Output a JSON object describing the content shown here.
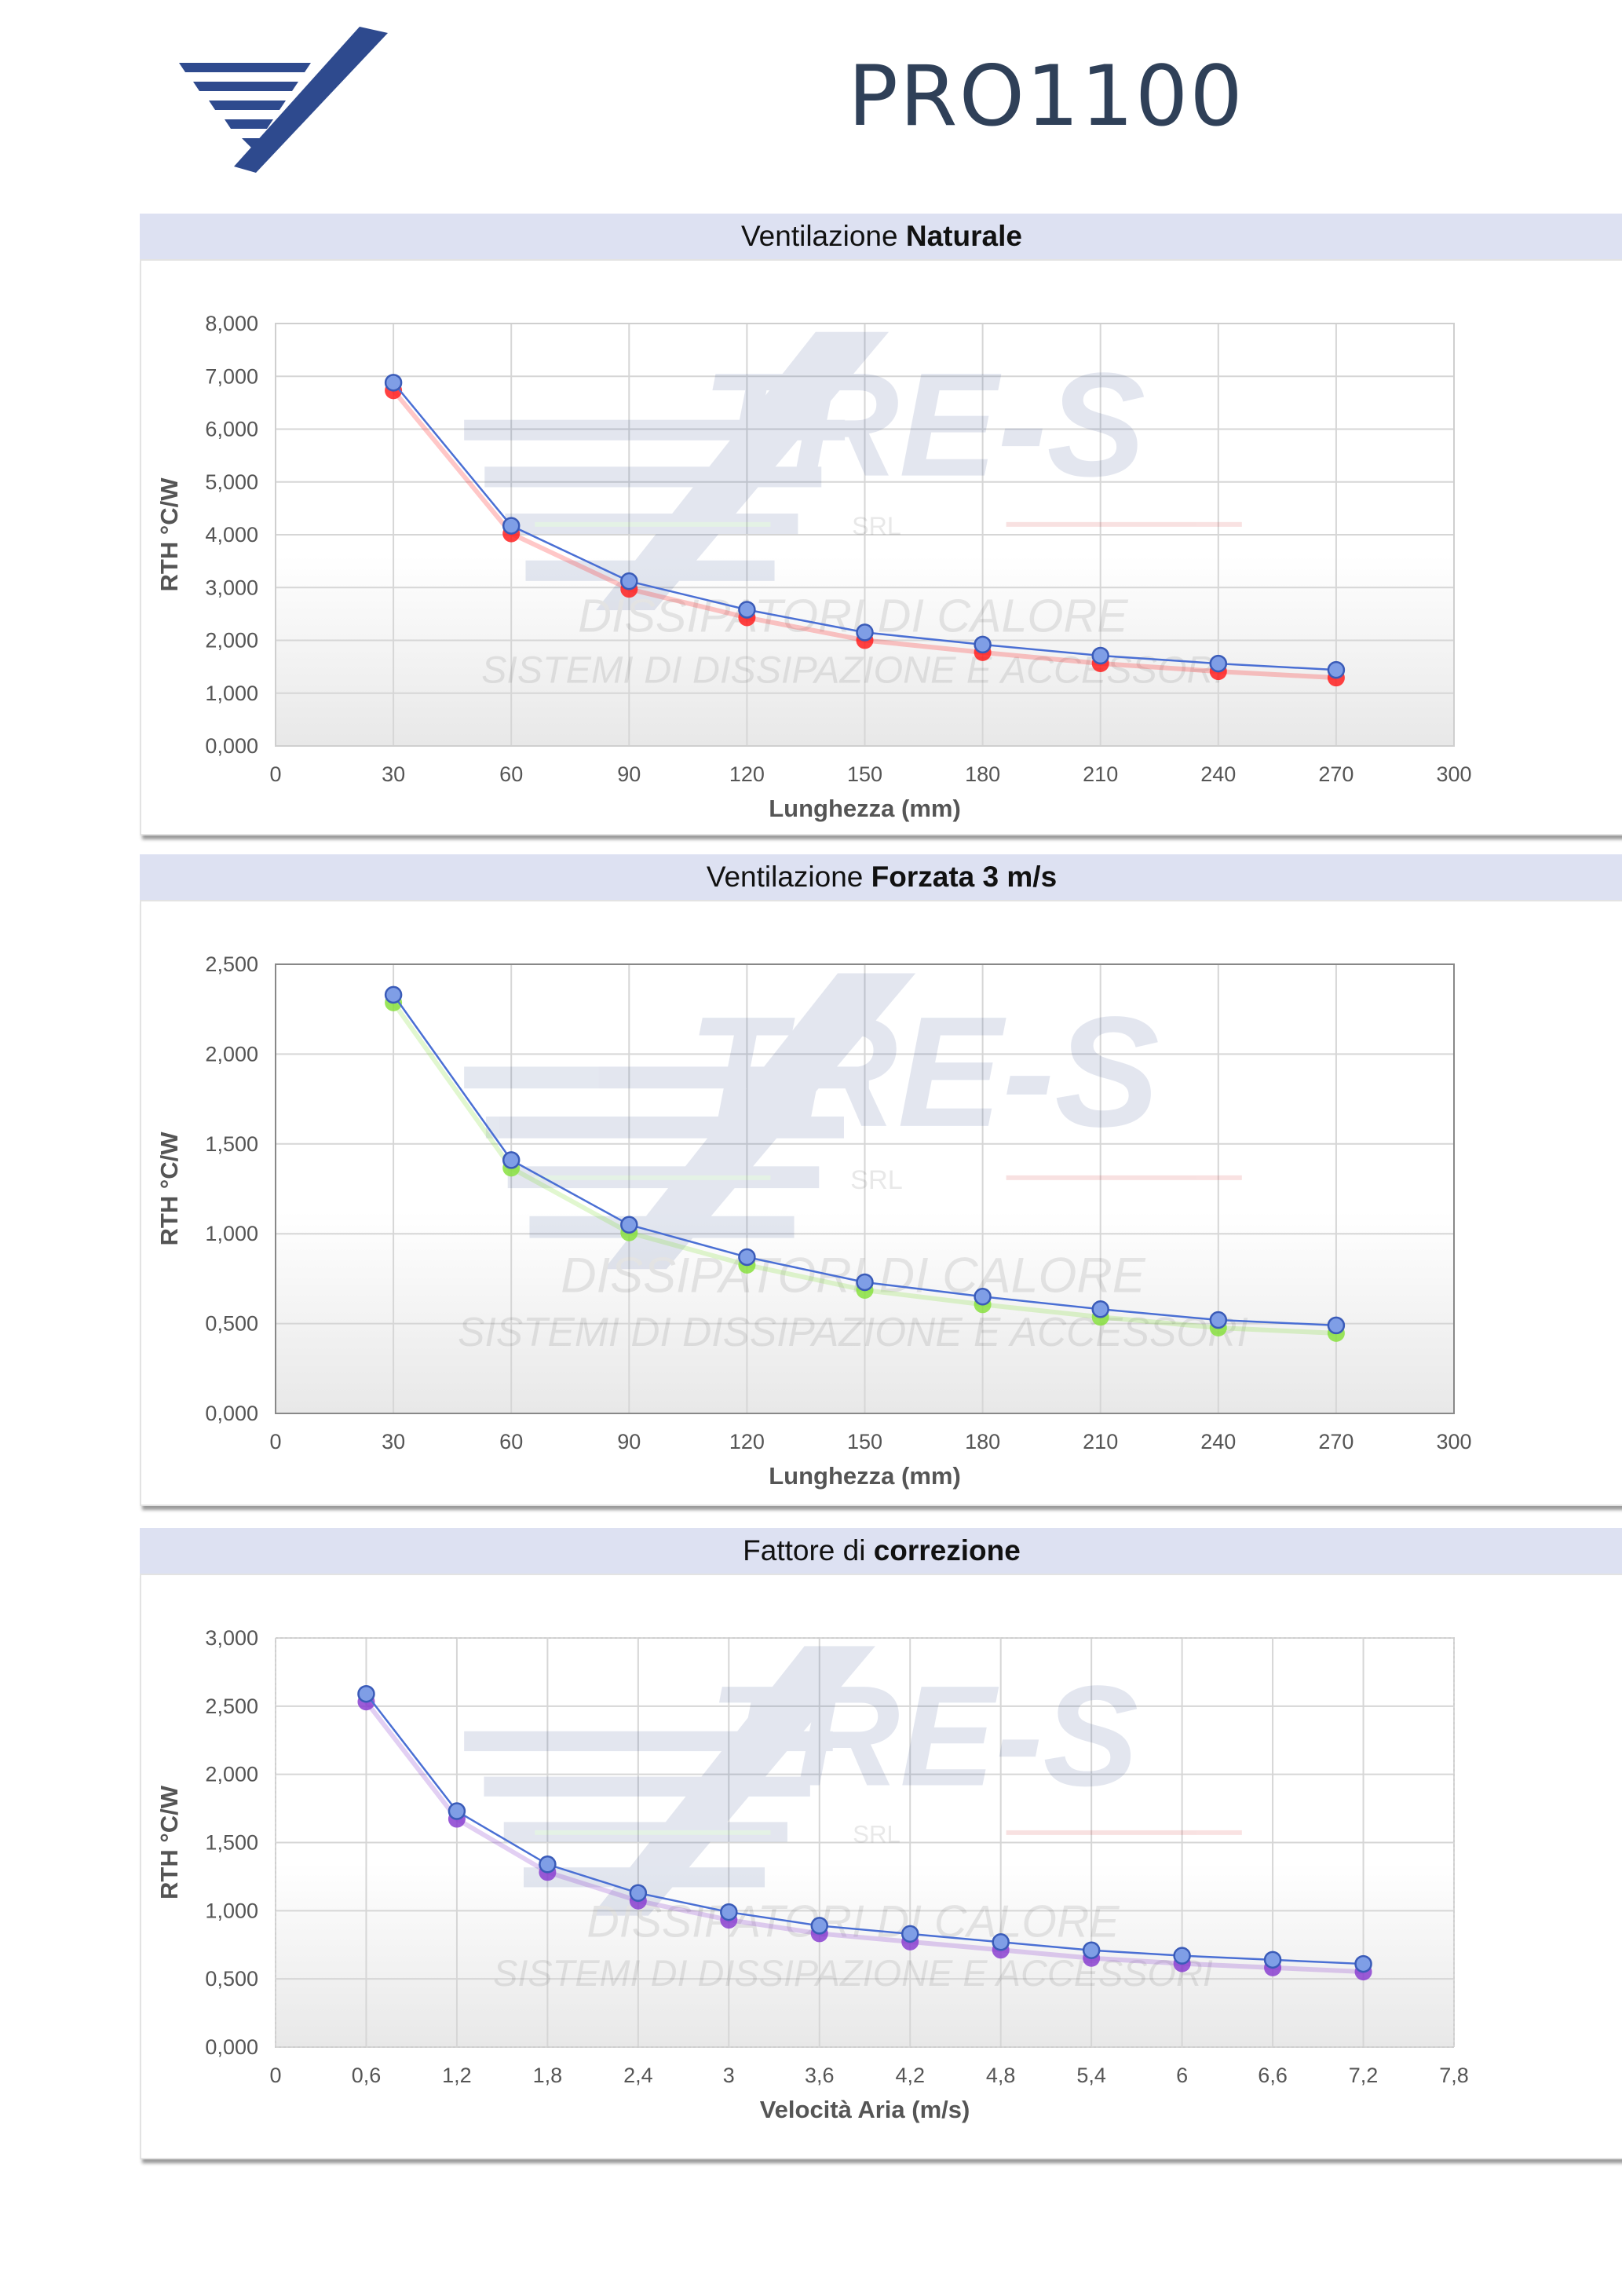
{
  "header": {
    "product_name": "PRO1100",
    "logo_icon": "tre-s-logo-icon",
    "brand_color": "#2e4a8e"
  },
  "watermark": {
    "brand": "TRE-S",
    "srl": "SRL",
    "line1": "DISSIPATORI DI CALORE",
    "line2": "SISTEMI DI DISSIPAZIONE E ACCESSORI"
  },
  "panels": [
    {
      "title_plain": "Ventilazione ",
      "title_bold": "Naturale",
      "shadow_color": "#ff2020",
      "line_color": "#4a6fd4",
      "marker_color": "#7f9ee6"
    },
    {
      "title_plain": "Ventilazione ",
      "title_bold": "Forzata 3 m/s",
      "shadow_color": "#88e040",
      "line_color": "#4a6fd4",
      "marker_color": "#7f9ee6"
    },
    {
      "title_plain": "Fattore di ",
      "title_bold": "correzione",
      "shadow_color": "#8a3fd0",
      "line_color": "#4a6fd4",
      "marker_color": "#7f9ee6"
    }
  ],
  "chart_data": [
    {
      "type": "line",
      "xlabel": "Lunghezza (mm)",
      "ylabel": "RTH °C/W",
      "xlim": [
        0,
        300
      ],
      "ylim": [
        0,
        8
      ],
      "x_ticks": [
        "0",
        "30",
        "60",
        "90",
        "120",
        "150",
        "180",
        "210",
        "240",
        "270",
        "300"
      ],
      "y_ticks": [
        "0,000",
        "1,000",
        "2,000",
        "3,000",
        "4,000",
        "5,000",
        "6,000",
        "7,000",
        "8,000"
      ],
      "grid": true,
      "x": [
        30,
        60,
        90,
        120,
        150,
        180,
        210,
        240,
        270
      ],
      "values": [
        6.88,
        4.17,
        3.12,
        2.58,
        2.15,
        1.92,
        1.71,
        1.56,
        1.44
      ]
    },
    {
      "type": "line",
      "xlabel": "Lunghezza (mm)",
      "ylabel": "RTH °C/W",
      "xlim": [
        0,
        300
      ],
      "ylim": [
        0,
        2.5
      ],
      "x_ticks": [
        "0",
        "30",
        "60",
        "90",
        "120",
        "150",
        "180",
        "210",
        "240",
        "270",
        "300"
      ],
      "y_ticks": [
        "0,000",
        "0,500",
        "1,000",
        "1,500",
        "2,000",
        "2,500"
      ],
      "grid": true,
      "x": [
        30,
        60,
        90,
        120,
        150,
        180,
        210,
        240,
        270
      ],
      "values": [
        2.33,
        1.41,
        1.05,
        0.87,
        0.73,
        0.65,
        0.58,
        0.52,
        0.49
      ]
    },
    {
      "type": "line",
      "xlabel": "Velocità Aria (m/s)",
      "ylabel": "RTH °C/W",
      "xlim": [
        0,
        7.8
      ],
      "ylim": [
        0,
        3
      ],
      "x_ticks": [
        "0",
        "0,6",
        "1,2",
        "1,8",
        "2,4",
        "3",
        "3,6",
        "4,2",
        "4,8",
        "5,4",
        "6",
        "6,6",
        "7,2",
        "7,8"
      ],
      "y_ticks": [
        "0,000",
        "0,500",
        "1,000",
        "1,500",
        "2,000",
        "2,500",
        "3,000"
      ],
      "grid": true,
      "x": [
        0.6,
        1.2,
        1.8,
        2.4,
        3.0,
        3.6,
        4.2,
        4.8,
        5.4,
        6.0,
        6.6,
        7.2
      ],
      "values": [
        2.59,
        1.73,
        1.34,
        1.13,
        0.99,
        0.89,
        0.83,
        0.77,
        0.71,
        0.67,
        0.64,
        0.61
      ]
    }
  ]
}
